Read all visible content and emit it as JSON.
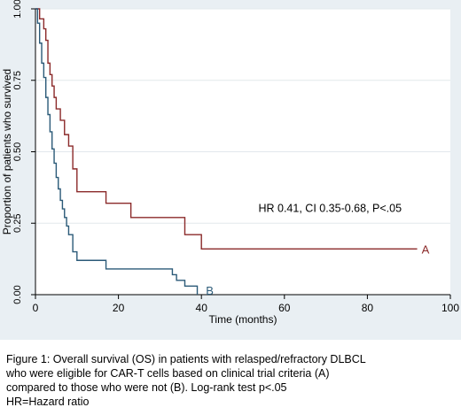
{
  "chart_data": {
    "type": "line",
    "xlabel": "Time (months)",
    "ylabel": "Proportion of patients who survived",
    "xlim": [
      0,
      100
    ],
    "ylim": [
      0,
      1
    ],
    "x_ticks": [
      0,
      20,
      40,
      60,
      80,
      100
    ],
    "y_ticks": [
      "0.00",
      "0.25",
      "0.50",
      "0.75",
      "1.00"
    ],
    "grid": "horizontal",
    "series": [
      {
        "name": "A",
        "color": "#8b2a2a",
        "step_x": [
          0,
          1,
          2,
          2.5,
          3,
          3.5,
          4,
          4.5,
          5,
          6,
          7,
          8,
          9,
          10,
          17,
          23,
          36,
          40,
          92
        ],
        "step_y": [
          1.0,
          0.965,
          0.93,
          0.89,
          0.81,
          0.77,
          0.73,
          0.69,
          0.65,
          0.61,
          0.56,
          0.52,
          0.44,
          0.36,
          0.32,
          0.27,
          0.21,
          0.16,
          0.16
        ]
      },
      {
        "name": "B",
        "color": "#2b5a78",
        "step_x": [
          0,
          0.5,
          1,
          1.5,
          2,
          2.5,
          3,
          3.5,
          4,
          4.5,
          5,
          5.5,
          6,
          6.5,
          7,
          7.5,
          8,
          9,
          10,
          17,
          33,
          34,
          36,
          39
        ],
        "step_y": [
          1.0,
          0.95,
          0.88,
          0.81,
          0.76,
          0.69,
          0.63,
          0.57,
          0.51,
          0.46,
          0.41,
          0.37,
          0.33,
          0.3,
          0.27,
          0.24,
          0.21,
          0.15,
          0.12,
          0.09,
          0.07,
          0.05,
          0.03,
          0.0
        ]
      }
    ],
    "end_labels": [
      {
        "text": "A",
        "x": 94,
        "y": 0.16
      },
      {
        "text": "B",
        "x": 42,
        "y": 0.015
      }
    ],
    "annotation": {
      "text": "HR 0.41, CI 0.35-0.68, P<.05",
      "x": 71,
      "y": 0.29
    }
  },
  "caption": {
    "lines": [
      "Figure 1: Overall survival (OS) in patients with relasped/refractory DLBCL",
      "who were eligible for CAR-T cells based on clinical trial criteria (A)",
      "compared to those who were not (B). Log-rank test p<.05",
      "HR=Hazard ratio"
    ]
  }
}
